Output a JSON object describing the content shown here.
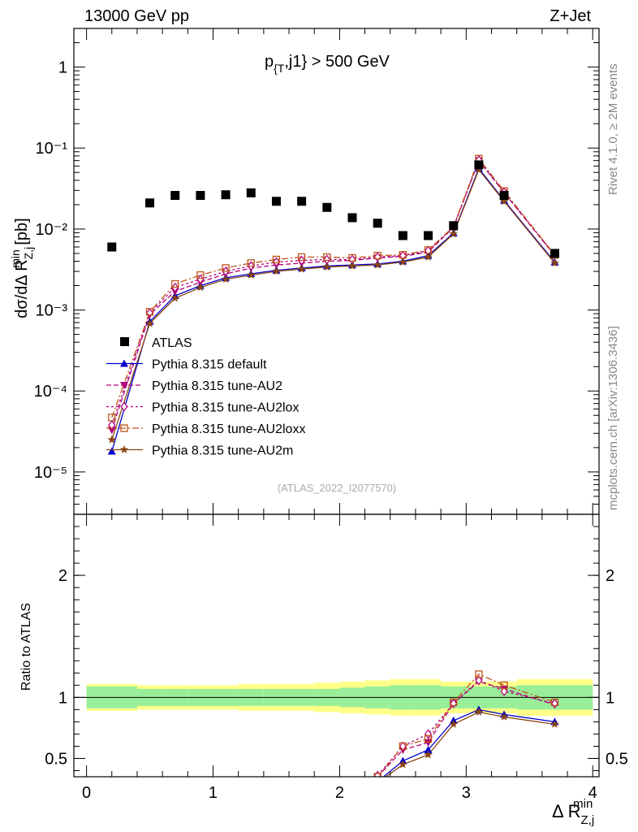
{
  "header": {
    "energy": "13000 GeV pp",
    "process": "Z+Jet"
  },
  "top_panel": {
    "cut_label": "p_{T},j1} > 500 GeV",
    "analysis_id": "(ATLAS_2022_I2077570)"
  },
  "side_labels": {
    "rivet": "Rivet 4.1.0, ≥ 2M events",
    "mcplots": "mcplots.cern.ch [arXiv:1306.3436]"
  },
  "colors": {
    "atlas": "#000000",
    "default": "#0000cc",
    "au2": "#b3007a",
    "au2lox": "#b3007a",
    "au2loxx": "#c0531a",
    "au2m": "#8b4513",
    "band_inner": "#99ee99",
    "band_outer": "#ffff88"
  },
  "chart_data": [
    {
      "type": "scatter",
      "title": "p_{T},j1} > 500 GeV",
      "xlabel": "Δ R^min_Z,j",
      "ylabel": "dσ/dΔ R^min_Z,j [pb]",
      "yscale": "log",
      "xlim": [
        -0.1,
        4.05
      ],
      "ylim": [
        3e-06,
        3.0
      ],
      "ytick_labels": [
        "10⁻⁵",
        "10⁻⁴",
        "10⁻³",
        "10⁻²",
        "10⁻¹",
        "1"
      ],
      "legend": [
        "ATLAS",
        "Pythia 8.315 default",
        "Pythia 8.315 tune-AU2",
        "Pythia 8.315 tune-AU2lox",
        "Pythia 8.315 tune-AU2loxx",
        "Pythia 8.315 tune-AU2m"
      ],
      "legend_position": "bottom-left",
      "x": [
        0.2,
        0.5,
        0.7,
        0.9,
        1.1,
        1.3,
        1.5,
        1.7,
        1.9,
        2.1,
        2.3,
        2.5,
        2.7,
        2.9,
        3.1,
        3.3,
        3.7
      ],
      "atlas": [
        0.006,
        0.021,
        0.026,
        0.026,
        0.0265,
        0.028,
        0.022,
        0.022,
        0.0185,
        0.0138,
        0.0118,
        0.0083,
        0.0083,
        0.011,
        0.062,
        0.026,
        0.005
      ],
      "series": [
        {
          "name": "Pythia 8.315 default",
          "values": [
            1.8e-05,
            0.00072,
            0.0015,
            0.002,
            0.0025,
            0.0028,
            0.0031,
            0.0033,
            0.0035,
            0.0036,
            0.0037,
            0.004,
            0.0047,
            0.0089,
            0.056,
            0.0225,
            0.0039
          ]
        },
        {
          "name": "Pythia 8.315 tune-AU2",
          "values": [
            3.3e-05,
            0.00088,
            0.0017,
            0.0022,
            0.0028,
            0.0033,
            0.0036,
            0.0038,
            0.004,
            0.0041,
            0.0044,
            0.0046,
            0.0052,
            0.0105,
            0.07,
            0.028,
            0.0047
          ]
        },
        {
          "name": "Pythia 8.315 tune-AU2lox",
          "values": [
            3.8e-05,
            0.00092,
            0.0019,
            0.0024,
            0.003,
            0.0035,
            0.0039,
            0.0041,
            0.0042,
            0.0042,
            0.0045,
            0.0047,
            0.0054,
            0.0106,
            0.071,
            0.0285,
            0.0048
          ]
        },
        {
          "name": "Pythia 8.315 tune-AU2loxx",
          "values": [
            4.7e-05,
            0.00095,
            0.0021,
            0.0027,
            0.0033,
            0.0038,
            0.0042,
            0.0045,
            0.0045,
            0.0044,
            0.0047,
            0.0048,
            0.0055,
            0.0107,
            0.074,
            0.0295,
            0.0048
          ]
        },
        {
          "name": "Pythia 8.315 tune-AU2m",
          "values": [
            2.5e-05,
            0.00068,
            0.0014,
            0.0019,
            0.0024,
            0.0027,
            0.003,
            0.0032,
            0.0034,
            0.0035,
            0.0036,
            0.0039,
            0.0045,
            0.0087,
            0.054,
            0.022,
            0.0038
          ]
        }
      ]
    },
    {
      "type": "line",
      "ylabel": "Ratio to ATLAS",
      "xlabel": "Δ R^min_Z,j",
      "xlim": [
        -0.1,
        4.05
      ],
      "ylim": [
        0.35,
        2.5
      ],
      "xtick_labels": [
        "0",
        "1",
        "2",
        "3",
        "4"
      ],
      "ytick_labels": [
        "0.5",
        "1",
        "2"
      ],
      "band_edges": [
        0.0,
        0.4,
        0.6,
        0.8,
        1.0,
        1.2,
        1.4,
        1.6,
        1.8,
        2.0,
        2.2,
        2.4,
        2.6,
        2.8,
        3.0,
        3.2,
        3.4,
        4.0
      ],
      "band_inner": [
        0.09,
        0.07,
        0.07,
        0.07,
        0.07,
        0.07,
        0.07,
        0.07,
        0.07,
        0.08,
        0.09,
        0.1,
        0.1,
        0.09,
        0.09,
        0.09,
        0.1
      ],
      "band_outer": [
        0.11,
        0.1,
        0.1,
        0.1,
        0.1,
        0.11,
        0.11,
        0.11,
        0.12,
        0.13,
        0.14,
        0.15,
        0.15,
        0.13,
        0.13,
        0.13,
        0.15
      ],
      "x": [
        2.3,
        2.5,
        2.7,
        2.9,
        3.1,
        3.3,
        3.7
      ],
      "series": [
        {
          "name": "Pythia 8.315 default",
          "values": [
            0.31,
            0.48,
            0.57,
            0.81,
            0.9,
            0.86,
            0.8
          ]
        },
        {
          "name": "Pythia 8.315 tune-AU2",
          "values": [
            0.35,
            0.57,
            0.63,
            0.95,
            1.13,
            1.07,
            0.94
          ]
        },
        {
          "name": "Pythia 8.315 tune-AU2lox",
          "values": [
            0.36,
            0.6,
            0.7,
            0.95,
            1.14,
            1.05,
            0.95
          ]
        },
        {
          "name": "Pythia 8.315 tune-AU2loxx",
          "values": [
            0.35,
            0.6,
            0.66,
            0.96,
            1.19,
            1.1,
            0.96
          ]
        },
        {
          "name": "Pythia 8.315 tune-AU2m",
          "values": [
            0.3,
            0.45,
            0.53,
            0.78,
            0.88,
            0.84,
            0.78
          ]
        }
      ]
    }
  ]
}
